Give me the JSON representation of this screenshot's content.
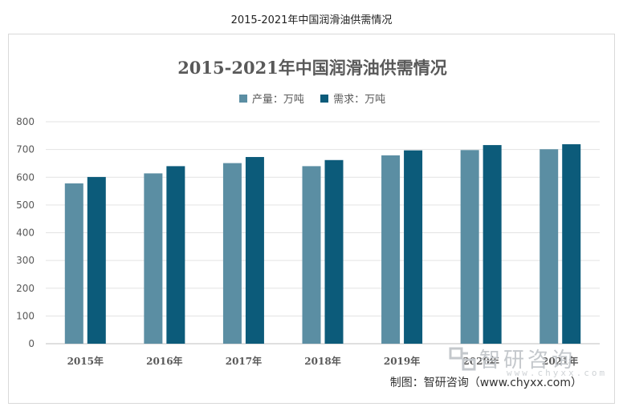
{
  "caption": "2015-2021年中国润滑油供需情况",
  "credit": "制图：智研咨询（www.chyxx.com）",
  "watermark": {
    "text": "智研咨询",
    "url": "www.chyxx.com",
    "icon": "chyxx-logo-icon"
  },
  "chart_data": {
    "type": "bar",
    "title": "2015-2021年中国润滑油供需情况",
    "categories": [
      "2015年",
      "2016年",
      "2017年",
      "2018年",
      "2019年",
      "2020年",
      "2021年"
    ],
    "series": [
      {
        "name": "产量：万吨",
        "values": [
          578,
          614,
          651,
          640,
          679,
          698,
          701
        ]
      },
      {
        "name": "需求：万吨",
        "values": [
          601,
          640,
          673,
          662,
          697,
          716,
          719
        ]
      }
    ],
    "ylim": [
      0,
      800
    ],
    "yticks": [
      0,
      100,
      200,
      300,
      400,
      500,
      600,
      700,
      800
    ],
    "grid": true,
    "legend": "top-center",
    "colors": [
      "#5b8ea3",
      "#0c5b7a"
    ]
  }
}
